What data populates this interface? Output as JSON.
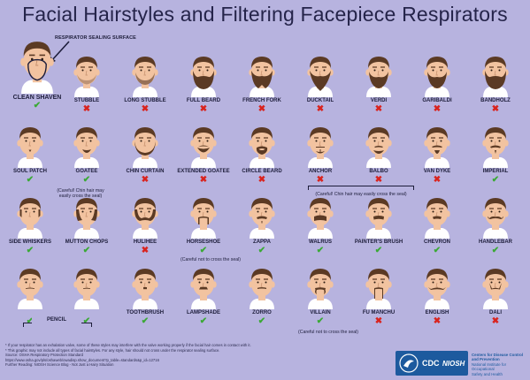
{
  "title": "Facial Hairstyles and Filtering Facepiece Respirators",
  "sealing_label": "RESPIRATOR SEALING SURFACE",
  "clean_shaven": {
    "label": "CLEAN SHAVEN",
    "ok": true
  },
  "rows": [
    [
      {
        "label": "STUBBLE",
        "ok": false
      },
      {
        "label": "LONG STUBBLE",
        "ok": false
      },
      {
        "label": "FULL BEARD",
        "ok": false
      },
      {
        "label": "FRENCH FORK",
        "ok": false
      },
      {
        "label": "DUCKTAIL",
        "ok": false
      },
      {
        "label": "VERDI",
        "ok": false
      },
      {
        "label": "GARIBALDI",
        "ok": false
      },
      {
        "label": "BANDHOLZ",
        "ok": false
      }
    ],
    [
      {
        "label": "SOUL PATCH",
        "ok": true
      },
      {
        "label": "GOATEE",
        "ok": true
      },
      {
        "label": "CHIN CURTAIN",
        "ok": false
      },
      {
        "label": "EXTENDED GOATEE",
        "ok": false
      },
      {
        "label": "CIRCLE BEARD",
        "ok": false
      },
      {
        "label": "ANCHOR",
        "ok": false
      },
      {
        "label": "BALBO",
        "ok": false
      },
      {
        "label": "VAN DYKE",
        "ok": false
      },
      {
        "label": "IMPERIAL",
        "ok": true
      }
    ],
    [
      {
        "label": "SIDE WHISKERS",
        "ok": true
      },
      {
        "label": "MUTTON CHOPS",
        "ok": true
      },
      {
        "label": "HULIHEE",
        "ok": false
      },
      {
        "label": "HORSESHOE",
        "ok": true
      },
      {
        "label": "ZAPPA",
        "ok": true
      },
      {
        "label": "WALRUS",
        "ok": true
      },
      {
        "label": "PAINTER'S BRUSH",
        "ok": true
      },
      {
        "label": "CHEVRON",
        "ok": true
      },
      {
        "label": "HANDLEBAR",
        "ok": true
      }
    ],
    [
      {
        "label": "",
        "ok": true
      },
      {
        "label": "",
        "ok": true
      },
      {
        "label": "TOOTHBRUSH",
        "ok": true
      },
      {
        "label": "LAMPSHADE",
        "ok": true
      },
      {
        "label": "ZORRO",
        "ok": true
      },
      {
        "label": "VILLAIN",
        "ok": true
      },
      {
        "label": "FU MANCHU",
        "ok": false
      },
      {
        "label": "ENGLISH",
        "ok": false
      },
      {
        "label": "DALI",
        "ok": false
      }
    ]
  ],
  "pencil_label": "PENCIL",
  "notes": {
    "goatee": "(Careful! Chin hair may easily cross the seal)",
    "anchor_balbo": "(Careful! Chin hair may easily cross the seal)",
    "horseshoe": "(Careful not to cross the seal)",
    "villain": "(Careful not to cross the seal)"
  },
  "footer": [
    "* If your respirator has an exhalation valve, some of these styles may interfere with the valve working properly if the facial hair comes in contact with it.",
    "* This graphic may not include all types of facial hairstyles. For any style, hair should not cross under the respirator sealing surface.",
    "Source: OSHA Respiratory Protection Standard",
    "https://www.osha.gov/pls/oshaweb/owadisp.show_document?p_table=standards&p_id=12716",
    "Further Reading: NIOSH Science Blog - Not Just a Hairy Situation"
  ],
  "logo": {
    "cdc": "CDC",
    "niosh": "NIOSH"
  },
  "agency": [
    "Centers for Disease Control",
    "and Prevention",
    "National Institute for Occupational",
    "Safety and Health"
  ],
  "colors": {
    "background": "#b7b3df",
    "skin": "#f2c3a0",
    "hair": "#5b3a24",
    "check": "#3aa935",
    "cross": "#d9231e",
    "logo": "#1d5a9e"
  }
}
